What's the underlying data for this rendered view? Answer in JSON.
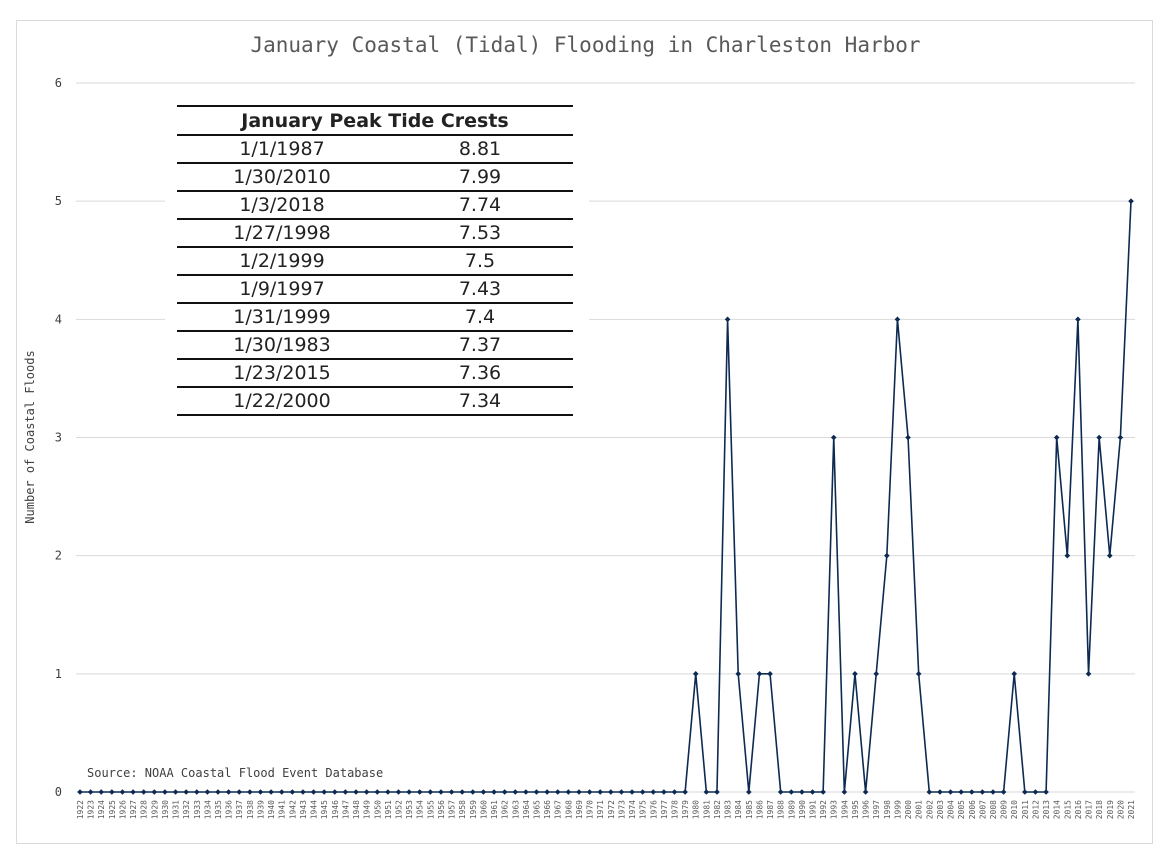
{
  "chart_data": {
    "type": "line",
    "title": "January Coastal (Tidal) Flooding in Charleston Harbor",
    "ylabel": "Number of Coastal Floods",
    "xlabel": "",
    "ylim": [
      0,
      6
    ],
    "yticks": [
      0,
      1,
      2,
      3,
      4,
      5,
      6
    ],
    "grid": "horizontal",
    "color": "#0d2a52",
    "x": [
      1922,
      1923,
      1924,
      1925,
      1926,
      1927,
      1928,
      1929,
      1930,
      1931,
      1932,
      1933,
      1934,
      1935,
      1936,
      1937,
      1938,
      1939,
      1940,
      1941,
      1942,
      1943,
      1944,
      1945,
      1946,
      1947,
      1948,
      1949,
      1950,
      1951,
      1952,
      1953,
      1954,
      1955,
      1956,
      1957,
      1958,
      1959,
      1960,
      1961,
      1962,
      1963,
      1964,
      1965,
      1966,
      1967,
      1968,
      1969,
      1970,
      1971,
      1972,
      1973,
      1974,
      1975,
      1976,
      1977,
      1978,
      1979,
      1980,
      1981,
      1982,
      1983,
      1984,
      1985,
      1986,
      1987,
      1988,
      1989,
      1990,
      1991,
      1992,
      1993,
      1994,
      1995,
      1996,
      1997,
      1998,
      1999,
      2000,
      2001,
      2002,
      2003,
      2004,
      2005,
      2006,
      2007,
      2008,
      2009,
      2010,
      2011,
      2012,
      2013,
      2014,
      2015,
      2016,
      2017,
      2018,
      2019,
      2020,
      2021
    ],
    "values": [
      0,
      0,
      0,
      0,
      0,
      0,
      0,
      0,
      0,
      0,
      0,
      0,
      0,
      0,
      0,
      0,
      0,
      0,
      0,
      0,
      0,
      0,
      0,
      0,
      0,
      0,
      0,
      0,
      0,
      0,
      0,
      0,
      0,
      0,
      0,
      0,
      0,
      0,
      0,
      0,
      0,
      0,
      0,
      0,
      0,
      0,
      0,
      0,
      0,
      0,
      0,
      0,
      0,
      0,
      0,
      0,
      0,
      0,
      1,
      0,
      0,
      4,
      1,
      0,
      1,
      1,
      0,
      0,
      0,
      0,
      0,
      3,
      0,
      1,
      0,
      1,
      2,
      4,
      3,
      1,
      0,
      0,
      0,
      0,
      0,
      0,
      0,
      0,
      1,
      0,
      0,
      0,
      3,
      2,
      4,
      1,
      3,
      2,
      3,
      5
    ],
    "source": "Source: NOAA Coastal Flood Event Database"
  },
  "table": {
    "header": "January Peak Tide Crests",
    "rows": [
      [
        "1/1/1987",
        "8.81"
      ],
      [
        "1/30/2010",
        "7.99"
      ],
      [
        "1/3/2018",
        "7.74"
      ],
      [
        "1/27/1998",
        "7.53"
      ],
      [
        "1/2/1999",
        "7.5"
      ],
      [
        "1/9/1997",
        "7.43"
      ],
      [
        "1/31/1999",
        "7.4"
      ],
      [
        "1/30/1983",
        "7.37"
      ],
      [
        "1/23/2015",
        "7.36"
      ],
      [
        "1/22/2000",
        "7.34"
      ]
    ]
  }
}
